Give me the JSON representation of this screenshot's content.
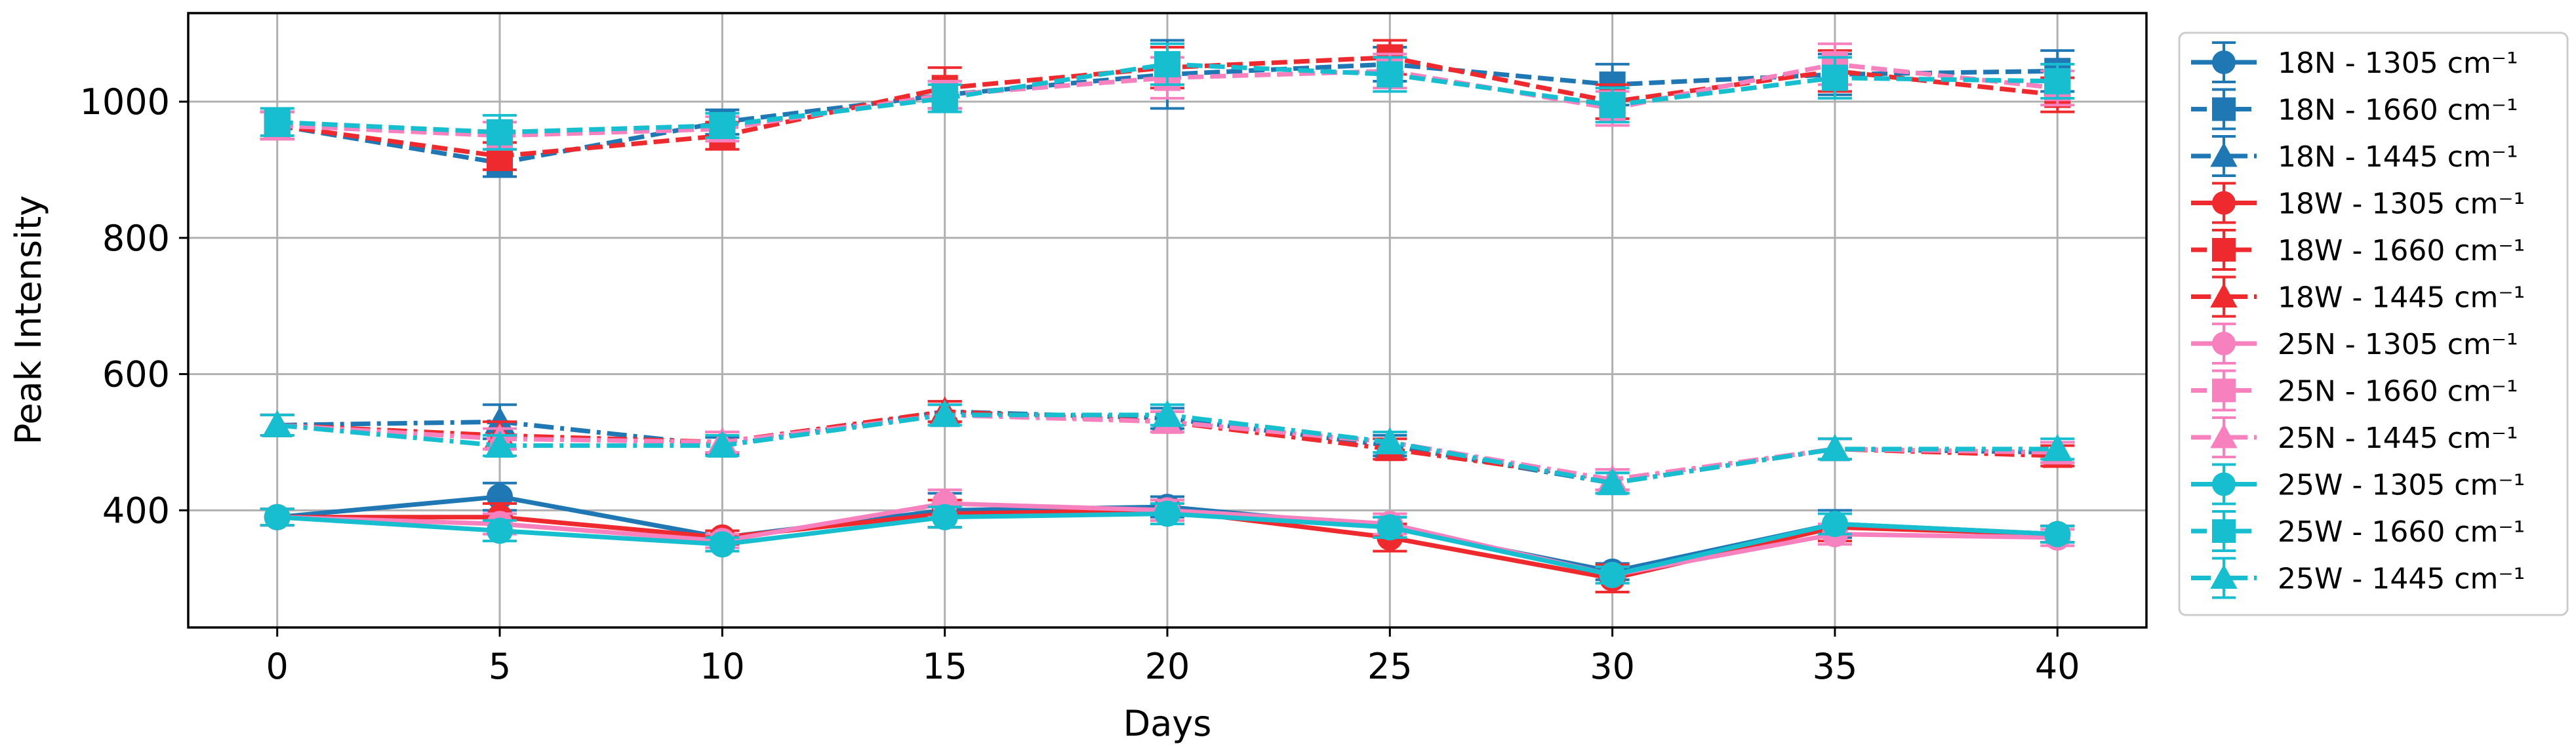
{
  "chart_data": {
    "type": "line",
    "title": "",
    "xlabel": "Days",
    "ylabel": "Peak Intensity",
    "x": [
      0,
      5,
      10,
      15,
      20,
      25,
      30,
      35,
      40
    ],
    "xlim": [
      -2,
      42
    ],
    "ylim": [
      228,
      1130
    ],
    "xticks": [
      0,
      5,
      10,
      15,
      20,
      25,
      30,
      35,
      40
    ],
    "yticks": [
      400,
      600,
      800,
      1000
    ],
    "grid": true,
    "legend_position": "right-outside",
    "series": [
      {
        "name": "18N - 1305 cm⁻¹",
        "color": "#1f77b4",
        "marker": "circle",
        "dash": "solid",
        "values": [
          390,
          420,
          360,
          400,
          405,
          375,
          310,
          380,
          365
        ],
        "errors": [
          12,
          20,
          10,
          25,
          15,
          15,
          12,
          20,
          12
        ]
      },
      {
        "name": "18N - 1660 cm⁻¹",
        "color": "#1f77b4",
        "marker": "square",
        "dash": "dashed",
        "values": [
          965,
          910,
          970,
          1010,
          1040,
          1055,
          1025,
          1040,
          1045
        ],
        "errors": [
          20,
          20,
          18,
          20,
          50,
          25,
          30,
          30,
          30
        ]
      },
      {
        "name": "18N - 1445 cm⁻¹",
        "color": "#1f77b4",
        "marker": "triangle",
        "dash": "dashdot",
        "values": [
          525,
          530,
          495,
          545,
          535,
          495,
          440,
          490,
          485
        ],
        "errors": [
          15,
          25,
          12,
          15,
          15,
          15,
          15,
          15,
          15
        ]
      },
      {
        "name": "18W - 1305 cm⁻¹",
        "color": "#ee2a2e",
        "marker": "circle",
        "dash": "solid",
        "values": [
          390,
          390,
          360,
          395,
          400,
          360,
          300,
          375,
          365
        ],
        "errors": [
          12,
          20,
          10,
          20,
          15,
          20,
          20,
          20,
          12
        ]
      },
      {
        "name": "18W - 1660 cm⁻¹",
        "color": "#ee2a2e",
        "marker": "square",
        "dash": "dashed",
        "values": [
          965,
          920,
          950,
          1020,
          1050,
          1065,
          1000,
          1045,
          1010
        ],
        "errors": [
          20,
          20,
          20,
          30,
          30,
          25,
          25,
          30,
          25
        ]
      },
      {
        "name": "18W - 1445 cm⁻¹",
        "color": "#ee2a2e",
        "marker": "triangle",
        "dash": "dashdot",
        "values": [
          525,
          510,
          500,
          545,
          530,
          490,
          445,
          490,
          480
        ],
        "errors": [
          15,
          20,
          15,
          15,
          15,
          15,
          15,
          15,
          15
        ]
      },
      {
        "name": "25N - 1305 cm⁻¹",
        "color": "#f781bf",
        "marker": "circle",
        "dash": "solid",
        "values": [
          390,
          380,
          355,
          410,
          400,
          380,
          305,
          365,
          360
        ],
        "errors": [
          12,
          15,
          10,
          20,
          15,
          15,
          12,
          15,
          12
        ]
      },
      {
        "name": "25N - 1660 cm⁻¹",
        "color": "#f781bf",
        "marker": "square",
        "dash": "dashed",
        "values": [
          965,
          950,
          960,
          1010,
          1035,
          1045,
          990,
          1055,
          1020
        ],
        "errors": [
          20,
          20,
          18,
          20,
          30,
          25,
          25,
          30,
          25
        ]
      },
      {
        "name": "25N - 1445 cm⁻¹",
        "color": "#f781bf",
        "marker": "triangle",
        "dash": "dashdot",
        "values": [
          525,
          505,
          500,
          540,
          530,
          500,
          445,
          490,
          485
        ],
        "errors": [
          15,
          15,
          15,
          15,
          15,
          15,
          15,
          15,
          15
        ]
      },
      {
        "name": "25W - 1305 cm⁻¹",
        "color": "#17becf",
        "marker": "circle",
        "dash": "solid",
        "values": [
          390,
          370,
          350,
          390,
          395,
          375,
          305,
          380,
          365
        ],
        "errors": [
          12,
          15,
          10,
          15,
          15,
          15,
          12,
          15,
          12
        ]
      },
      {
        "name": "25W - 1660 cm⁻¹",
        "color": "#17becf",
        "marker": "square",
        "dash": "dashed",
        "values": [
          970,
          955,
          965,
          1005,
          1055,
          1040,
          995,
          1035,
          1030
        ],
        "errors": [
          20,
          25,
          18,
          20,
          30,
          25,
          25,
          30,
          25
        ]
      },
      {
        "name": "25W - 1445 cm⁻¹",
        "color": "#17becf",
        "marker": "triangle",
        "dash": "dashdot",
        "values": [
          525,
          495,
          495,
          540,
          540,
          500,
          440,
          490,
          490
        ],
        "errors": [
          15,
          15,
          15,
          15,
          15,
          15,
          15,
          15,
          15
        ]
      }
    ]
  }
}
